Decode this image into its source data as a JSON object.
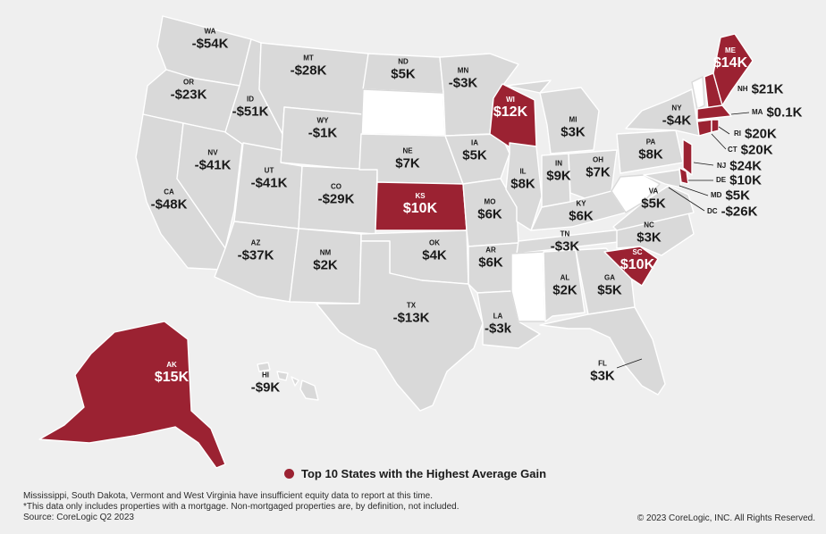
{
  "colors": {
    "highlight": "#9b2232",
    "base": "#d9d9d9",
    "no_data": "#ffffff",
    "border": "#ffffff"
  },
  "states": {
    "WA": {
      "abbr": "WA",
      "value": "-$54K"
    },
    "OR": {
      "abbr": "OR",
      "value": "-$23K"
    },
    "CA": {
      "abbr": "CA",
      "value": "-$48K"
    },
    "NV": {
      "abbr": "NV",
      "value": "-$41K"
    },
    "ID": {
      "abbr": "ID",
      "value": "-$51K"
    },
    "MT": {
      "abbr": "MT",
      "value": "-$28K"
    },
    "WY": {
      "abbr": "WY",
      "value": "-$1K"
    },
    "UT": {
      "abbr": "UT",
      "value": "-$41K"
    },
    "AZ": {
      "abbr": "AZ",
      "value": "-$37K"
    },
    "CO": {
      "abbr": "CO",
      "value": "-$29K"
    },
    "NM": {
      "abbr": "NM",
      "value": "$2K"
    },
    "ND": {
      "abbr": "ND",
      "value": "$5K"
    },
    "NE": {
      "abbr": "NE",
      "value": "$7K"
    },
    "KS": {
      "abbr": "KS",
      "value": "$10K"
    },
    "OK": {
      "abbr": "OK",
      "value": "$4K"
    },
    "TX": {
      "abbr": "TX",
      "value": "-$13K"
    },
    "MN": {
      "abbr": "MN",
      "value": "-$3K"
    },
    "IA": {
      "abbr": "IA",
      "value": "$5K"
    },
    "MO": {
      "abbr": "MO",
      "value": "$6K"
    },
    "AR": {
      "abbr": "AR",
      "value": "$6K"
    },
    "LA": {
      "abbr": "LA",
      "value": "-$3k"
    },
    "WI": {
      "abbr": "WI",
      "value": "$12K"
    },
    "IL": {
      "abbr": "IL",
      "value": "$8K"
    },
    "MI": {
      "abbr": "MI",
      "value": "$3K"
    },
    "IN": {
      "abbr": "IN",
      "value": "$9K"
    },
    "OH": {
      "abbr": "OH",
      "value": "$7K"
    },
    "KY": {
      "abbr": "KY",
      "value": "$6K"
    },
    "TN": {
      "abbr": "TN",
      "value": "-$3K"
    },
    "AL": {
      "abbr": "AL",
      "value": "$2K"
    },
    "GA": {
      "abbr": "GA",
      "value": "$5K"
    },
    "FL": {
      "abbr": "FL",
      "value": "$3K"
    },
    "SC": {
      "abbr": "SC",
      "value": "$10K"
    },
    "NC": {
      "abbr": "NC",
      "value": "$3K"
    },
    "VA": {
      "abbr": "VA",
      "value": "$5K"
    },
    "PA": {
      "abbr": "PA",
      "value": "$8K"
    },
    "NY": {
      "abbr": "NY",
      "value": "-$4K"
    },
    "ME": {
      "abbr": "ME",
      "value": "$14K"
    },
    "NH": {
      "abbr": "NH",
      "value": "$21K"
    },
    "MA": {
      "abbr": "MA",
      "value": "$0.1K"
    },
    "RI": {
      "abbr": "RI",
      "value": "$20K"
    },
    "CT": {
      "abbr": "CT",
      "value": "$20K"
    },
    "NJ": {
      "abbr": "NJ",
      "value": "$24K"
    },
    "DE": {
      "abbr": "DE",
      "value": "$10K"
    },
    "MD": {
      "abbr": "MD",
      "value": "$5K"
    },
    "DC": {
      "abbr": "DC",
      "value": "-$26K"
    },
    "AK": {
      "abbr": "AK",
      "value": "$15K"
    },
    "HI": {
      "abbr": "HI",
      "value": "-$9K"
    }
  },
  "legend": {
    "label": "Top 10 States with the Highest Average Gain"
  },
  "notes": [
    "Mississippi, South Dakota, Vermont and West Virginia  have insufficient equity data to report at this time.",
    "*This data only includes properties with a mortgage. Non-mortgaged properties are, by definition, not included.",
    "Source: CoreLogic Q2 2023"
  ],
  "copyright": "© 2023 CoreLogic, INC. All Rights Reserved."
}
